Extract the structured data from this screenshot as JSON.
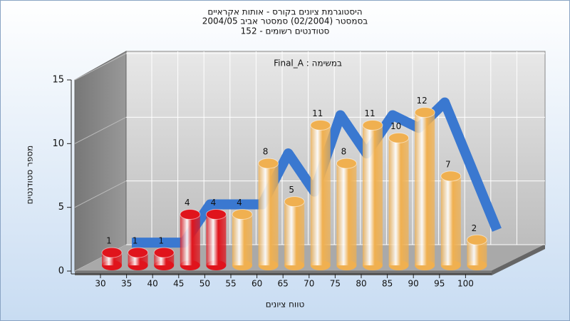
{
  "chart_data": {
    "type": "bar3d",
    "title": [
      "היסטוגרמת ציונים בקורס - אותות אקראיים",
      "בסמסטר (02/2004)  סמסטר אביב 2004/05",
      "סטודנטים רשומים - 152"
    ],
    "annotation": "במשימה : Final_A",
    "xlabel": "טווח ציונים",
    "ylabel": "מספר סטודנטים",
    "categories": [
      "30",
      "35",
      "40",
      "45",
      "50",
      "55",
      "60",
      "65",
      "70",
      "75",
      "80",
      "85",
      "90",
      "95",
      "100"
    ],
    "values": [
      1,
      1,
      1,
      4,
      4,
      4,
      8,
      5,
      11,
      8,
      11,
      10,
      12,
      7,
      2
    ],
    "colors": [
      "#e0141c",
      "#e0141c",
      "#e0141c",
      "#e0141c",
      "#e0141c",
      "#f0b050",
      "#f0b050",
      "#f0b050",
      "#f0b050",
      "#f0b050",
      "#f0b050",
      "#f0b050",
      "#f0b050",
      "#f0b050",
      "#f0b050"
    ],
    "ribbon_color": "#3a78d0",
    "ylim": [
      0,
      15
    ],
    "yticks": [
      0,
      5,
      10,
      15
    ],
    "grid": true
  }
}
